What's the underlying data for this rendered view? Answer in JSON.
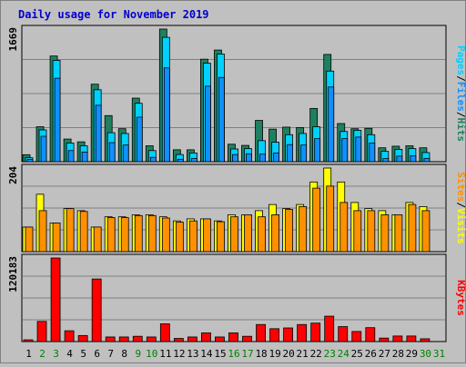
{
  "chart_data": {
    "type": "bar",
    "title": "Daily usage for November 2019",
    "categories": [
      "1",
      "2",
      "3",
      "4",
      "5",
      "6",
      "7",
      "8",
      "9",
      "10",
      "11",
      "12",
      "13",
      "14",
      "15",
      "16",
      "17",
      "18",
      "19",
      "20",
      "21",
      "22",
      "23",
      "24",
      "25",
      "26",
      "27",
      "28",
      "29",
      "30",
      "31"
    ],
    "weekend_days": [
      "2",
      "3",
      "9",
      "10",
      "16",
      "17",
      "23",
      "24",
      "30",
      "31"
    ],
    "panels": [
      {
        "name": "hits-files-pages",
        "y_max_label": "1669",
        "ylim": [
          0,
          1669
        ],
        "series": [
          {
            "name": "Hits",
            "color": "#1e8060",
            "values": [
              88,
              440,
              1330,
              285,
              250,
              975,
              580,
              415,
              800,
              200,
              1669,
              150,
              150,
              1290,
              1405,
              220,
              205,
              520,
              410,
              435,
              430,
              670,
              1350,
              480,
              415,
              420,
              175,
              195,
              200,
              175,
              0
            ]
          },
          {
            "name": "Files",
            "color": "#00d0ff",
            "values": [
              50,
              400,
              1275,
              235,
              200,
              905,
              365,
              355,
              735,
              140,
              1565,
              90,
              110,
              1240,
              1355,
              160,
              165,
              265,
              245,
              340,
              355,
              440,
              1140,
              380,
              395,
              340,
              130,
              155,
              165,
              115,
              0
            ]
          },
          {
            "name": "Pages",
            "color": "#1090ff",
            "values": [
              30,
              320,
              1050,
              140,
              120,
              710,
              240,
              210,
              560,
              55,
              1180,
              30,
              40,
              950,
              1060,
              90,
              100,
              95,
              110,
              215,
              210,
              290,
              940,
              290,
              310,
              235,
              40,
              70,
              75,
              40,
              0
            ]
          }
        ]
      },
      {
        "name": "visits-sites",
        "y_max_label": "204",
        "ylim": [
          0,
          204
        ],
        "series": [
          {
            "name": "Visits",
            "color": "#ffff00",
            "values": [
              60,
              140,
              70,
              105,
              100,
              60,
              85,
              85,
              90,
              90,
              85,
              75,
              80,
              80,
              75,
              90,
              90,
              100,
              115,
              105,
              115,
              170,
              204,
              170,
              120,
              105,
              100,
              90,
              120,
              110,
              0
            ]
          },
          {
            "name": "Sites",
            "color": "#ff9000",
            "values": [
              60,
              100,
              70,
              105,
              98,
              60,
              83,
              83,
              88,
              88,
              82,
              72,
              75,
              80,
              73,
              85,
              90,
              85,
              90,
              103,
              110,
              155,
              160,
              120,
              100,
              100,
              90,
              90,
              115,
              100,
              0
            ]
          }
        ]
      },
      {
        "name": "kbytes",
        "y_max_label": "120183",
        "ylim": [
          0,
          120183
        ],
        "series": [
          {
            "name": "KBytes",
            "color": "#ff0000",
            "values": [
              2500,
              29000,
              120183,
              15500,
              8700,
              90000,
              6600,
              6600,
              7600,
              6600,
              25500,
              4500,
              6600,
              12500,
              6600,
              12500,
              7600,
              24500,
              18500,
              19600,
              24500,
              26500,
              36500,
              21500,
              14500,
              20000,
              5000,
              8000,
              8000,
              4000,
              0
            ]
          }
        ]
      }
    ],
    "right_legends": [
      [
        {
          "text": "Pages",
          "color": "#00d0ff"
        },
        {
          "text": "/",
          "color": "#000000"
        },
        {
          "text": "Files",
          "color": "#1090ff"
        },
        {
          "text": "/",
          "color": "#000000"
        },
        {
          "text": "Hits",
          "color": "#1e8060"
        }
      ],
      [
        {
          "text": "Sites",
          "color": "#ff9000"
        },
        {
          "text": "/",
          "color": "#000000"
        },
        {
          "text": "Visits",
          "color": "#ffff00"
        }
      ],
      [
        {
          "text": "KBytes",
          "color": "#ff0000"
        }
      ]
    ]
  }
}
